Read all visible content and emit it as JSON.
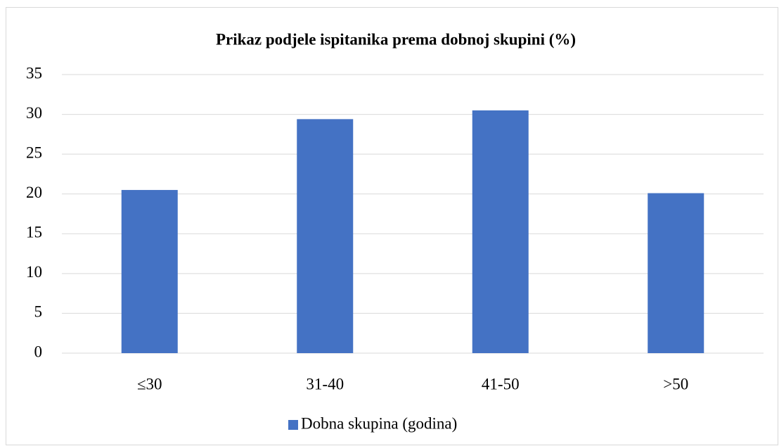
{
  "chart_data": {
    "type": "bar",
    "title": "Prikaz podjele ispitanika prema dobnoj skupini (%)",
    "categories": [
      "≤30",
      "31-40",
      "41-50",
      ">50"
    ],
    "series": [
      {
        "name": "Dobna skupina (godina)",
        "color": "#4472c4",
        "values": [
          20.5,
          29.4,
          30.5,
          20.1
        ]
      }
    ],
    "ylim": [
      0,
      35
    ],
    "yticks": [
      0,
      5,
      10,
      15,
      20,
      25,
      30,
      35
    ],
    "grid": true,
    "legend": "bottom"
  }
}
